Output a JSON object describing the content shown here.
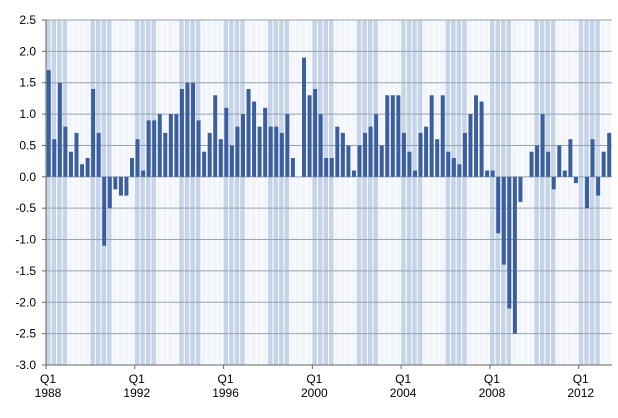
{
  "chart_data": {
    "type": "bar",
    "categories": [
      "Q1\n1988",
      null,
      null,
      null,
      null,
      null,
      null,
      null,
      null,
      null,
      null,
      null,
      null,
      null,
      null,
      null,
      "Q1\n1992",
      null,
      null,
      null,
      null,
      null,
      null,
      null,
      null,
      null,
      null,
      null,
      null,
      null,
      null,
      null,
      "Q1\n1996",
      null,
      null,
      null,
      null,
      null,
      null,
      null,
      null,
      null,
      null,
      null,
      null,
      null,
      null,
      null,
      "Q1\n2000",
      null,
      null,
      null,
      null,
      null,
      null,
      null,
      null,
      null,
      null,
      null,
      null,
      null,
      null,
      null,
      "Q1\n2004",
      null,
      null,
      null,
      null,
      null,
      null,
      null,
      null,
      null,
      null,
      null,
      null,
      null,
      null,
      null,
      "Q1\n2008",
      null,
      null,
      null,
      null,
      null,
      null,
      null,
      null,
      null,
      null,
      null,
      null,
      null,
      null,
      null,
      "Q1\n2012",
      null,
      null,
      null,
      null,
      null
    ],
    "values": [
      1.7,
      0.6,
      1.5,
      0.8,
      0.4,
      0.7,
      0.2,
      0.3,
      1.4,
      0.7,
      -1.1,
      -0.5,
      -0.2,
      -0.3,
      -0.3,
      0.3,
      0.6,
      0.1,
      0.9,
      0.9,
      1.0,
      0.7,
      1.0,
      1.0,
      1.4,
      1.5,
      1.5,
      0.9,
      0.4,
      0.7,
      1.3,
      0.6,
      1.1,
      0.5,
      0.8,
      1.0,
      1.4,
      1.2,
      0.8,
      1.1,
      0.8,
      0.8,
      0.7,
      1.0,
      0.3,
      0.0,
      1.9,
      1.3,
      1.4,
      1.0,
      0.3,
      0.3,
      0.8,
      0.7,
      0.5,
      0.1,
      0.5,
      0.7,
      0.8,
      1.0,
      0.5,
      1.3,
      1.3,
      1.3,
      0.7,
      0.4,
      0.1,
      0.7,
      0.8,
      1.3,
      0.6,
      1.3,
      0.4,
      0.3,
      0.2,
      0.7,
      1.0,
      1.3,
      1.2,
      0.1,
      0.1,
      -0.9,
      -1.4,
      -2.1,
      -2.5,
      -0.4,
      0.0,
      0.4,
      0.5,
      1.0,
      0.4,
      -0.2,
      0.5,
      0.1,
      0.6,
      -0.1,
      0.0,
      -0.5,
      0.6,
      -0.3,
      0.4,
      0.7
    ],
    "color": "#3b5f9e",
    "ylim": [
      -3,
      2.5
    ],
    "yticks": [
      {
        "value": -3,
        "label": "-3.0"
      },
      -2.5,
      {
        "value": -2,
        "label": "-2.0"
      },
      -1.5,
      {
        "value": -1,
        "label": "-1.0"
      },
      -0.5,
      {
        "value": 0,
        "label": "0.0"
      },
      0.5,
      {
        "value": 1,
        "label": "1.0"
      },
      1.5,
      {
        "value": 2,
        "label": "2.0"
      },
      2.5
    ],
    "grid": true
  }
}
